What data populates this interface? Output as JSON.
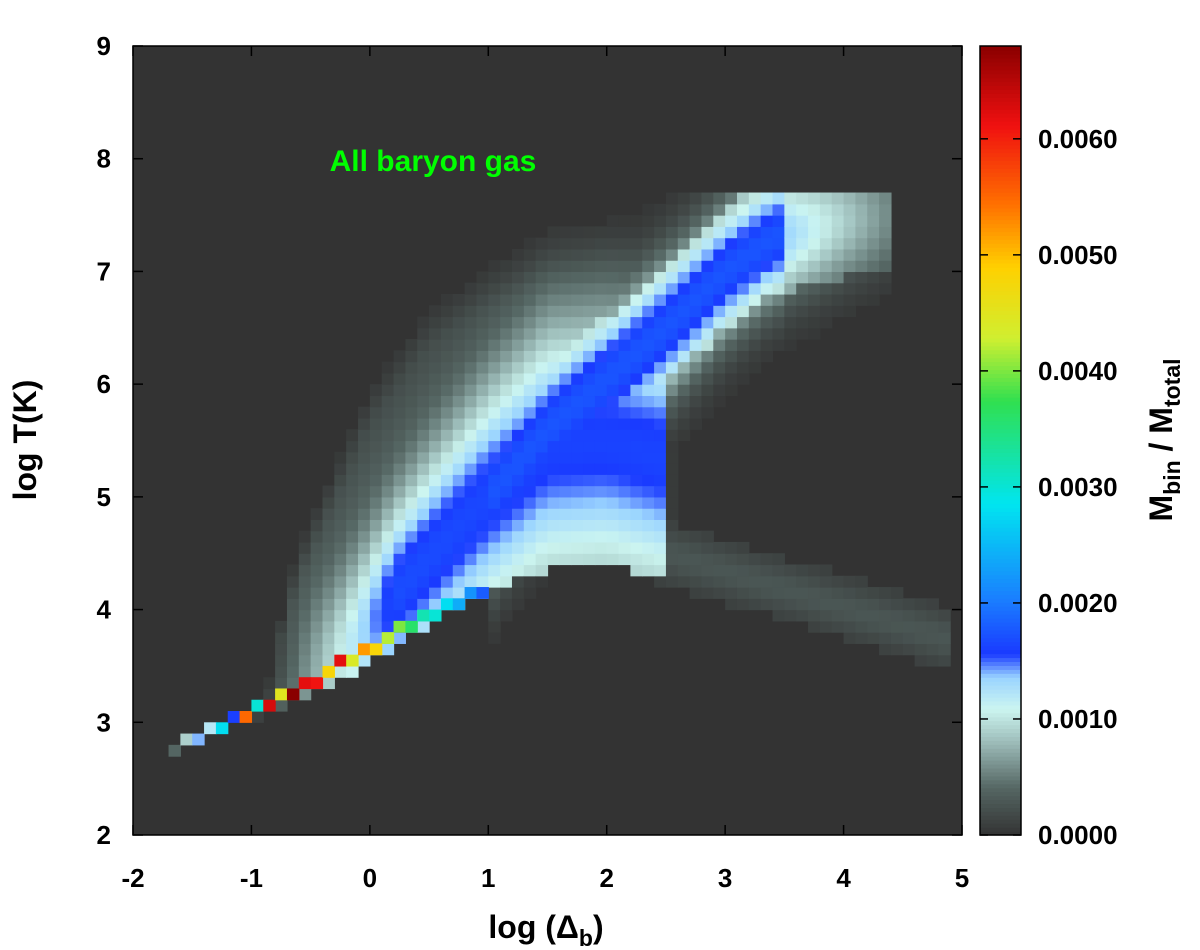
{
  "chart_data": {
    "type": "heatmap",
    "annotation": "All baryon gas",
    "xlabel_main": "log (Δ",
    "xlabel_sub": "b",
    "xlabel_close": ")",
    "ylabel": "log T(K)",
    "colorbar_label_main": "M",
    "colorbar_label_sub1": "bin",
    "colorbar_label_mid": " / M",
    "colorbar_label_sub2": "total",
    "xlim": [
      -2,
      5
    ],
    "ylim": [
      2,
      9
    ],
    "x_ticks": [
      "-2",
      "-1",
      "0",
      "1",
      "2",
      "3",
      "4",
      "5"
    ],
    "y_ticks": [
      "2",
      "3",
      "4",
      "5",
      "6",
      "7",
      "8",
      "9"
    ],
    "colorbar_range": [
      0,
      0.0068
    ],
    "colorbar_ticks": [
      "0.0000",
      "0.0010",
      "0.0020",
      "0.0030",
      "0.0040",
      "0.0050",
      "0.0060"
    ],
    "bin_size_x": 0.1,
    "bin_size_y": 0.1,
    "grid": false,
    "background_color": "#333333",
    "annotation_color": "#00ff00",
    "colormap": [
      [
        0.0,
        "#333333"
      ],
      [
        0.06,
        "#556663"
      ],
      [
        0.12,
        "#9fbfbc"
      ],
      [
        0.16,
        "#ccf5f0"
      ],
      [
        0.2,
        "#9ad4ff"
      ],
      [
        0.23,
        "#1a3aff"
      ],
      [
        0.3,
        "#1a7fff"
      ],
      [
        0.42,
        "#00e5f0"
      ],
      [
        0.55,
        "#30e050"
      ],
      [
        0.63,
        "#d0ef30"
      ],
      [
        0.72,
        "#ffd000"
      ],
      [
        0.8,
        "#ff7000"
      ],
      [
        0.9,
        "#f01010"
      ],
      [
        1.0,
        "#8a0000"
      ]
    ],
    "diagonal_hot_bins": [
      {
        "x": -1.65,
        "y": 2.75,
        "value": 0.0004
      },
      {
        "x": -1.55,
        "y": 2.85,
        "value": 0.0009
      },
      {
        "x": -1.45,
        "y": 2.85,
        "value": 0.0014
      },
      {
        "x": -1.35,
        "y": 2.95,
        "value": 0.0012
      },
      {
        "x": -1.25,
        "y": 2.95,
        "value": 0.0028
      },
      {
        "x": -1.15,
        "y": 3.05,
        "value": 0.0016
      },
      {
        "x": -1.05,
        "y": 3.05,
        "value": 0.0055
      },
      {
        "x": -0.95,
        "y": 3.15,
        "value": 0.003
      },
      {
        "x": -0.85,
        "y": 3.15,
        "value": 0.0063
      },
      {
        "x": -0.75,
        "y": 3.25,
        "value": 0.0045
      },
      {
        "x": -0.65,
        "y": 3.25,
        "value": 0.0068
      },
      {
        "x": -0.55,
        "y": 3.35,
        "value": 0.0062
      },
      {
        "x": -0.45,
        "y": 3.35,
        "value": 0.0061
      },
      {
        "x": -0.35,
        "y": 3.45,
        "value": 0.0048
      },
      {
        "x": -0.25,
        "y": 3.55,
        "value": 0.0062
      },
      {
        "x": -0.15,
        "y": 3.55,
        "value": 0.0044
      },
      {
        "x": -0.05,
        "y": 3.65,
        "value": 0.0052
      },
      {
        "x": 0.05,
        "y": 3.65,
        "value": 0.0048
      },
      {
        "x": 0.15,
        "y": 3.75,
        "value": 0.0042
      },
      {
        "x": 0.25,
        "y": 3.85,
        "value": 0.004
      },
      {
        "x": 0.35,
        "y": 3.85,
        "value": 0.0036
      },
      {
        "x": 0.45,
        "y": 3.95,
        "value": 0.0032
      },
      {
        "x": 0.55,
        "y": 3.95,
        "value": 0.003
      },
      {
        "x": 0.65,
        "y": 4.05,
        "value": 0.0028
      },
      {
        "x": 0.75,
        "y": 4.05,
        "value": 0.0024
      },
      {
        "x": 0.85,
        "y": 4.15,
        "value": 0.0022
      },
      {
        "x": 0.95,
        "y": 4.15,
        "value": 0.0018
      }
    ]
  }
}
